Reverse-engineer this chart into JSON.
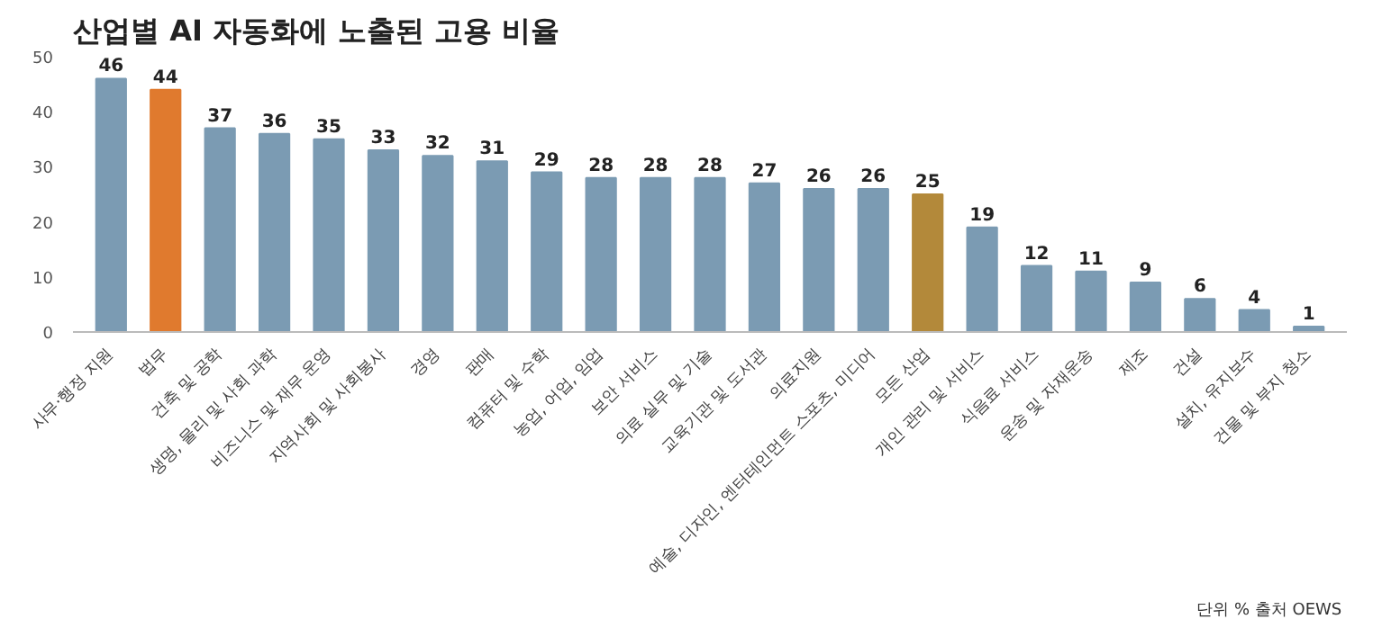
{
  "chart_data": {
    "type": "bar",
    "title": "산업별 AI 자동화에 노출된 고용 비율",
    "categories": [
      "사무·행정 지원",
      "법무",
      "건축 및 공학",
      "생명, 물리 및 사회 과학",
      "비즈니스 및 재무 운영",
      "지역사회 및 사회봉사",
      "경영",
      "판매",
      "컴퓨터 및 수학",
      "농업, 어업, 임업",
      "보안 서비스",
      "의료 실무 및 기술",
      "교육기관 및 도서관",
      "의료지원",
      "예술, 디자인, 엔터테인먼트 스포츠, 미디어",
      "모든 산업",
      "개인 관리 및 서비스",
      "식음료 서비스",
      "운송 및 자재운송",
      "제조",
      "건설",
      "설치, 유지보수",
      "건물 및 부지 청소"
    ],
    "values": [
      46,
      44,
      37,
      36,
      35,
      33,
      32,
      31,
      29,
      28,
      28,
      28,
      27,
      26,
      26,
      25,
      19,
      12,
      11,
      9,
      6,
      4,
      1
    ],
    "colors": [
      "#7b9bb3",
      "#e07a2e",
      "#7b9bb3",
      "#7b9bb3",
      "#7b9bb3",
      "#7b9bb3",
      "#7b9bb3",
      "#7b9bb3",
      "#7b9bb3",
      "#7b9bb3",
      "#7b9bb3",
      "#7b9bb3",
      "#7b9bb3",
      "#7b9bb3",
      "#7b9bb3",
      "#b3893a",
      "#7b9bb3",
      "#7b9bb3",
      "#7b9bb3",
      "#7b9bb3",
      "#7b9bb3",
      "#7b9bb3",
      "#7b9bb3"
    ],
    "data_labels": true,
    "ylim": [
      0,
      50
    ],
    "yticks": [
      0,
      10,
      20,
      30,
      40,
      50
    ],
    "grid": false,
    "annotations": [
      "단위 %  출처 OEWS"
    ]
  }
}
